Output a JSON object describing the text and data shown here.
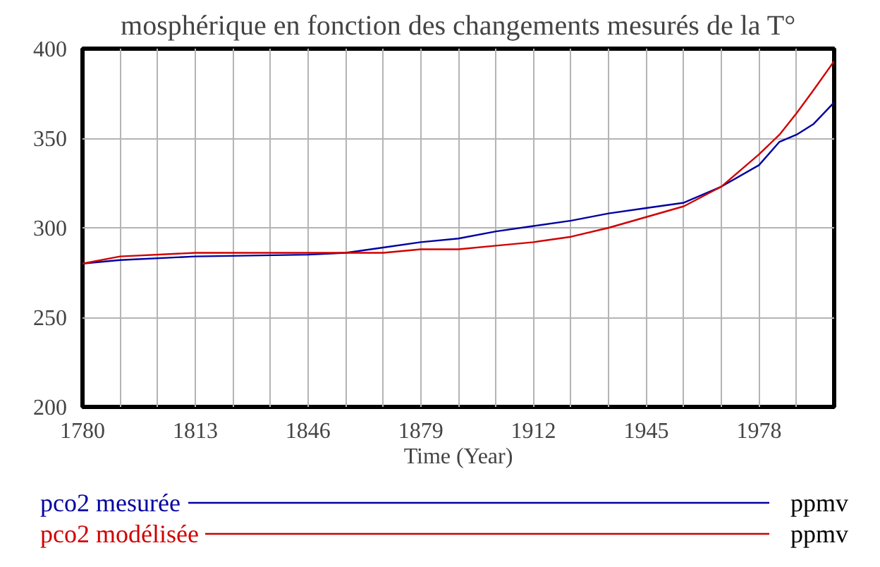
{
  "chart_data": {
    "type": "line",
    "title": "mosphérique en fonction des changements mesurés de la T°",
    "xlabel": "Time (Year)",
    "xlim": [
      1780,
      2000
    ],
    "ylim": [
      200,
      400
    ],
    "xticks": [
      1780,
      {
        "value": 1791,
        "label": null
      },
      {
        "value": 1802,
        "label": null
      },
      1813,
      {
        "value": 1824,
        "label": null
      },
      {
        "value": 1835,
        "label": null
      },
      1846,
      {
        "value": 1857,
        "label": null
      },
      {
        "value": 1868,
        "label": null
      },
      1879,
      {
        "value": 1890,
        "label": null
      },
      {
        "value": 1901,
        "label": null
      },
      1912,
      {
        "value": 1923,
        "label": null
      },
      {
        "value": 1934,
        "label": null
      },
      1945,
      {
        "value": 1956,
        "label": null
      },
      {
        "value": 1967,
        "label": null
      },
      1978,
      {
        "value": 1989,
        "label": null
      },
      {
        "value": 2000,
        "label": null
      }
    ],
    "yticks": [
      200,
      250,
      300,
      350,
      400
    ],
    "grid": true,
    "legend": "bottom",
    "line_style": "solid",
    "annotations": [
      "ppmv",
      "ppmv"
    ],
    "x": [
      1780,
      1791,
      1813,
      1846,
      1857,
      1868,
      1879,
      1890,
      1901,
      1912,
      1923,
      1934,
      1945,
      1956,
      1967,
      1978,
      1984,
      1989,
      1994,
      2000
    ],
    "series": [
      {
        "name": "pco2 mesurée",
        "color": "#0000a0",
        "values": [
          280,
          282,
          284,
          285,
          286,
          289,
          292,
          294,
          298,
          301,
          304,
          308,
          311,
          314,
          323,
          335,
          348,
          352,
          358,
          370
        ]
      },
      {
        "name": "pco2 modélisée",
        "color": "#d00000",
        "values": [
          280,
          284,
          286,
          286,
          286,
          286,
          288,
          288,
          290,
          292,
          295,
          300,
          306,
          312,
          323,
          341,
          352,
          364,
          377,
          393
        ]
      }
    ]
  }
}
